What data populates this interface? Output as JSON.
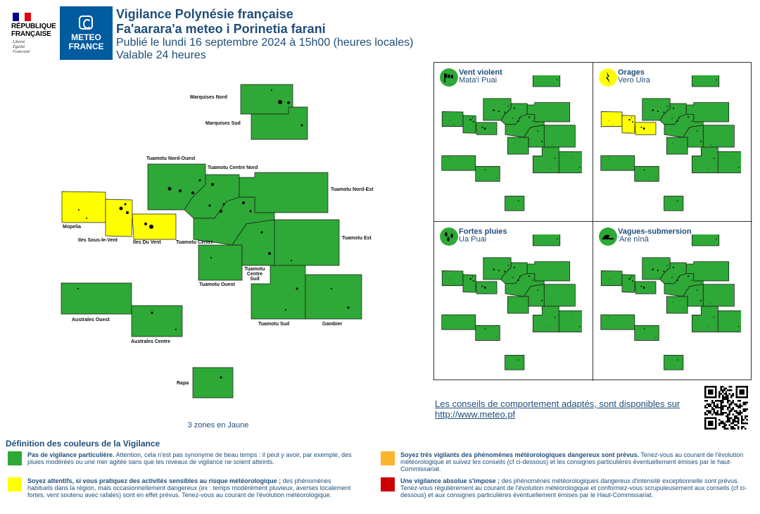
{
  "header": {
    "republique_lines": [
      "RÉPUBLIQUE",
      "FRANÇAISE"
    ],
    "republique_motto": [
      "Liberté",
      "Égalité",
      "Fraternité"
    ],
    "meteo_logo_lines": [
      "METEO",
      "FRANCE"
    ],
    "title": "Vigilance Polynésie française",
    "title_local": "Fa'aarara'a meteo i Porinetia farani",
    "published": "Publié le lundi 16 septembre 2024 à 15h00 (heures locales)",
    "validity": "Valable 24 heures"
  },
  "colors": {
    "green": "#2ea836",
    "yellow": "#ffff00",
    "orange": "#fbb52e",
    "red": "#cc0000",
    "text": "#1f4e79",
    "meteo_blue": "#005b9f"
  },
  "zones": [
    {
      "id": "marquises-nord",
      "label": "Marquises Nord",
      "level": "green"
    },
    {
      "id": "marquises-sud",
      "label": "Marquises Sud",
      "level": "green"
    },
    {
      "id": "tuamotu-nord-ouest",
      "label": "Tuamotu Nord-Ouest",
      "level": "green"
    },
    {
      "id": "tuamotu-centre-nord",
      "label": "Tuamotu Centre Nord",
      "level": "green"
    },
    {
      "id": "tuamotu-nord-est",
      "label": "Tuamotu Nord-Est",
      "level": "green"
    },
    {
      "id": "mopelia",
      "label": "Mopelia",
      "level": "yellow"
    },
    {
      "id": "iles-sous-le-vent",
      "label": "Iles Sous-le-Vent",
      "level": "yellow"
    },
    {
      "id": "iles-du-vent",
      "label": "Iles Du Vent",
      "level": "yellow"
    },
    {
      "id": "tuamotu-centre",
      "label": "Tuamotu Centre",
      "level": "green"
    },
    {
      "id": "tuamotu-est",
      "label": "Tuamotu Est",
      "level": "green"
    },
    {
      "id": "tuamotu-ouest",
      "label": "Tuamotu Ouest",
      "level": "green"
    },
    {
      "id": "tuamotu-centre-sud",
      "label": "Tuamotu Centre Sud",
      "level": "green"
    },
    {
      "id": "australes-ouest",
      "label": "Australes Ouest",
      "level": "green"
    },
    {
      "id": "tuamotu-sud",
      "label": "Tuamotu Sud",
      "level": "green"
    },
    {
      "id": "gambier",
      "label": "Gambier",
      "level": "green"
    },
    {
      "id": "australes-centre",
      "label": "Australes Centre",
      "level": "green"
    },
    {
      "id": "rapa",
      "label": "Rapa",
      "level": "green"
    }
  ],
  "zones_summary": "3 zones en Jaune",
  "phenomena": [
    {
      "id": "vent-violent",
      "title": "Vent violent",
      "subtitle": "Mata'i Puai",
      "icon": "wind-flag-icon",
      "yellow_zones": []
    },
    {
      "id": "orages",
      "title": "Orages",
      "subtitle": "Vero Uira",
      "icon": "lightning-icon",
      "yellow_zones": [
        "mopelia",
        "iles-sous-le-vent",
        "iles-du-vent"
      ]
    },
    {
      "id": "fortes-pluies",
      "title": "Fortes pluies",
      "subtitle": "Ua Puai",
      "icon": "rain-drops-icon",
      "yellow_zones": []
    },
    {
      "id": "vagues-submersion",
      "title": "Vagues-submersion",
      "subtitle": "'Are nīnā",
      "icon": "wave-icon",
      "yellow_zones": []
    }
  ],
  "advice": {
    "text": "Les conseils de comportement adaptés, sont disponibles sur",
    "url": "http://www.meteo.pf"
  },
  "legend": {
    "title": "Définition des couleurs de la Vigilance",
    "items": [
      {
        "color": "green",
        "bold": "Pas de vigilance particulière.",
        "text": " Attention, cela n'est pas synonyme de beau temps : il peut y avoir, par exemple, des pluies modérées ou une mer agitée sans que les niveaux de vigilance ne soient atteints."
      },
      {
        "color": "orange",
        "bold": "Soyez très vigilants des phénomènes météorologiques dangereux sont prévus.",
        "text": " Tenez-vous au courant de l'évolution météorologique et suivez les conseils (cf ci-dessous) et les consignes particulières éventuellement émises par le haut-Commissariat."
      },
      {
        "color": "yellow",
        "bold": "Soyez attentifs, si vous pratiquez des activités sensibles au risque météorologique ;",
        "text": " des phénomènes habituels dans la région, mais occasionnellement dangereux (ex : temps modérément pluvieux, averses localement fortes, vent soutenu avec rafales) sont en effet prévus. Tenez-vous au courant de l'évolution météorologique."
      },
      {
        "color": "red",
        "bold": "Une vigilance absolue s'impose ;",
        "text": " des phénomènes météorologiques dangereux d'intensité exceptionnelle sont prévus. Tenez-vous régulièrement au courant de l'évolution météorologique et conformez-vous scrupuleusement aux conseils (cf ci-dessous) et aux consignes particulières éventuellement émises par le Haut-Commissariat."
      }
    ]
  }
}
